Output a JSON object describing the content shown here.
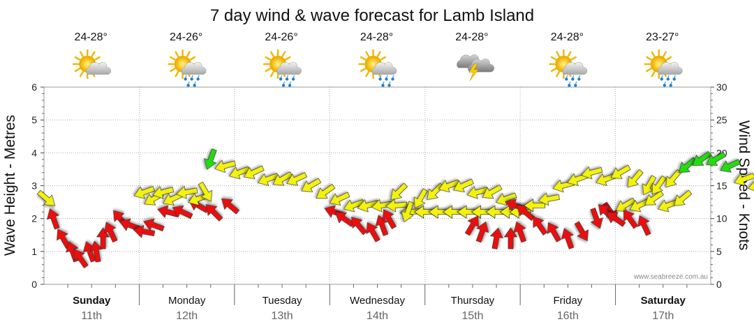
{
  "chart_data": {
    "type": "scatter",
    "title": "7 day wind & wave forecast for Lamb Island",
    "ylabel_left": "Wave Height - Metres",
    "ylabel_right": "Wind Speed - Knots",
    "ylim_left": [
      0,
      6
    ],
    "ylim_right": [
      0,
      30
    ],
    "yticks_left": [
      "0",
      "1",
      "2",
      "3",
      "4",
      "5",
      "6"
    ],
    "yticks_right": [
      "0",
      "5",
      "10",
      "15",
      "20",
      "25",
      "30"
    ],
    "credit": "www.seabreeze.com.au",
    "grid": true,
    "days": [
      {
        "name": "Sunday",
        "date": "11th",
        "temp": "24-28°",
        "icon": "sun-cloud-icon",
        "bold": true
      },
      {
        "name": "Monday",
        "date": "12th",
        "temp": "24-26°",
        "icon": "sun-rain-icon",
        "bold": false
      },
      {
        "name": "Tuesday",
        "date": "13th",
        "temp": "24-26°",
        "icon": "sun-rain-icon",
        "bold": false
      },
      {
        "name": "Wednesday",
        "date": "14th",
        "temp": "24-28°",
        "icon": "sun-shower-icon",
        "bold": false
      },
      {
        "name": "Thursday",
        "date": "15th",
        "temp": "24-28°",
        "icon": "storm-icon",
        "bold": false
      },
      {
        "name": "Friday",
        "date": "16th",
        "temp": "24-28°",
        "icon": "sun-rain-icon",
        "bold": false
      },
      {
        "name": "Saturday",
        "date": "17th",
        "temp": "23-27°",
        "icon": "sun-rain-icon",
        "bold": true
      }
    ],
    "colors": {
      "red": "#ee1111",
      "yellow": "#f2f20a",
      "green": "#22dd11",
      "outline": "#333333"
    },
    "series": [
      {
        "segment": 0,
        "points": [
          [
            0.03,
            13,
            "yellow",
            40
          ],
          [
            0.1,
            10,
            "red",
            250
          ],
          [
            0.2,
            7,
            "red",
            240
          ],
          [
            0.3,
            5,
            "red",
            250
          ],
          [
            0.38,
            4,
            "red",
            235
          ],
          [
            0.48,
            5,
            "red",
            250
          ],
          [
            0.55,
            5,
            "red",
            260
          ],
          [
            0.62,
            7,
            "red",
            270
          ],
          [
            0.7,
            8,
            "red",
            245
          ],
          [
            0.8,
            10,
            "red",
            230
          ],
          [
            0.9,
            9,
            "red",
            200
          ],
          [
            1.05,
            8,
            "red",
            190
          ],
          [
            1.15,
            9,
            "red",
            200
          ],
          [
            1.3,
            11,
            "red",
            195
          ],
          [
            1.45,
            11,
            "red",
            205
          ],
          [
            1.62,
            12,
            "red",
            210
          ],
          [
            1.78,
            11,
            "red",
            225
          ],
          [
            1.95,
            12,
            "red",
            220
          ]
        ]
      },
      {
        "segment": 1,
        "points": [
          [
            0.05,
            14,
            "yellow",
            160
          ],
          [
            0.15,
            13,
            "yellow",
            150
          ],
          [
            0.25,
            14,
            "yellow",
            165
          ],
          [
            0.35,
            13,
            "yellow",
            155
          ],
          [
            0.5,
            14,
            "yellow",
            170
          ],
          [
            0.62,
            13,
            "yellow",
            160
          ],
          [
            0.7,
            14,
            "yellow",
            60
          ],
          [
            0.75,
            19,
            "green",
            110
          ],
          [
            0.9,
            18,
            "yellow",
            165
          ],
          [
            1.05,
            17,
            "yellow",
            160
          ],
          [
            1.2,
            17,
            "yellow",
            155
          ],
          [
            1.35,
            16,
            "yellow",
            160
          ],
          [
            1.5,
            16,
            "yellow",
            150
          ],
          [
            1.65,
            16,
            "yellow",
            155
          ],
          [
            1.8,
            15,
            "yellow",
            150
          ],
          [
            1.95,
            14,
            "yellow",
            145
          ],
          [
            2.1,
            13,
            "yellow",
            155
          ],
          [
            2.25,
            12,
            "yellow",
            160
          ],
          [
            2.4,
            12,
            "yellow",
            165
          ],
          [
            2.55,
            12,
            "yellow",
            170
          ],
          [
            2.7,
            12,
            "yellow",
            175
          ],
          [
            2.85,
            11,
            "yellow",
            175
          ],
          [
            3.0,
            11,
            "yellow",
            180
          ],
          [
            3.15,
            11,
            "yellow",
            180
          ],
          [
            3.3,
            11,
            "yellow",
            180
          ],
          [
            3.45,
            11,
            "yellow",
            180
          ],
          [
            3.6,
            11,
            "yellow",
            180
          ],
          [
            3.75,
            11,
            "yellow",
            180
          ],
          [
            3.9,
            11,
            "yellow",
            180
          ],
          [
            4.0,
            11,
            "yellow",
            180
          ]
        ]
      },
      {
        "segment": 2,
        "points": [
          [
            0.05,
            11,
            "red",
            200
          ],
          [
            0.15,
            10,
            "red",
            215
          ],
          [
            0.3,
            9,
            "red",
            230
          ],
          [
            0.45,
            8,
            "red",
            240
          ],
          [
            0.55,
            9,
            "red",
            250
          ],
          [
            0.62,
            10,
            "red",
            240
          ],
          [
            0.72,
            14,
            "yellow",
            135
          ],
          [
            0.82,
            11,
            "yellow",
            110
          ],
          [
            0.95,
            13,
            "yellow",
            120
          ],
          [
            1.1,
            14,
            "yellow",
            135
          ],
          [
            1.25,
            15,
            "yellow",
            160
          ],
          [
            1.4,
            15,
            "yellow",
            155
          ],
          [
            1.55,
            14,
            "yellow",
            165
          ],
          [
            1.7,
            14,
            "yellow",
            150
          ],
          [
            1.85,
            13,
            "yellow",
            160
          ],
          [
            1.95,
            12,
            "red",
            200
          ],
          [
            2.05,
            11,
            "red",
            220
          ],
          [
            2.2,
            9,
            "red",
            235
          ],
          [
            2.35,
            8,
            "red",
            240
          ],
          [
            2.5,
            7,
            "red",
            250
          ],
          [
            2.65,
            8,
            "red",
            60
          ],
          [
            2.8,
            10,
            "red",
            70
          ],
          [
            2.95,
            11,
            "red",
            55
          ],
          [
            3.1,
            12,
            "yellow",
            150
          ],
          [
            3.25,
            12,
            "yellow",
            155
          ],
          [
            3.4,
            13,
            "yellow",
            145
          ],
          [
            3.55,
            12,
            "yellow",
            160
          ],
          [
            3.7,
            13,
            "yellow",
            140
          ]
        ]
      },
      {
        "segment": 3,
        "points": [
          [
            0.05,
            9,
            "red",
            300
          ],
          [
            0.15,
            8,
            "red",
            290
          ],
          [
            0.3,
            7,
            "red",
            280
          ],
          [
            0.45,
            7,
            "red",
            270
          ],
          [
            0.55,
            8,
            "red",
            250
          ],
          [
            0.7,
            12,
            "yellow",
            180
          ],
          [
            0.85,
            13,
            "yellow",
            170
          ],
          [
            1.0,
            15,
            "yellow",
            165
          ],
          [
            1.15,
            16,
            "yellow",
            160
          ],
          [
            1.3,
            17,
            "yellow",
            165
          ],
          [
            1.45,
            16,
            "yellow",
            160
          ],
          [
            1.6,
            17,
            "yellow",
            150
          ],
          [
            1.75,
            16,
            "yellow",
            130
          ],
          [
            1.9,
            15,
            "yellow",
            120
          ]
        ]
      },
      {
        "segment": 4,
        "points": [
          [
            0.05,
            11,
            "red",
            225
          ],
          [
            0.15,
            10,
            "red",
            215
          ],
          [
            0.3,
            10,
            "red",
            235
          ],
          [
            0.45,
            9,
            "red",
            245
          ],
          [
            0.6,
            15,
            "yellow",
            125
          ],
          [
            0.75,
            16,
            "yellow",
            130
          ],
          [
            0.9,
            18,
            "green",
            140
          ],
          [
            1.05,
            19,
            "green",
            145
          ],
          [
            1.2,
            19,
            "green",
            150
          ],
          [
            1.35,
            18,
            "green",
            155
          ],
          [
            1.5,
            16,
            "yellow",
            160
          ],
          [
            1.65,
            15,
            "yellow",
            165
          ],
          [
            1.75,
            14,
            "yellow",
            170
          ]
        ]
      }
    ]
  }
}
